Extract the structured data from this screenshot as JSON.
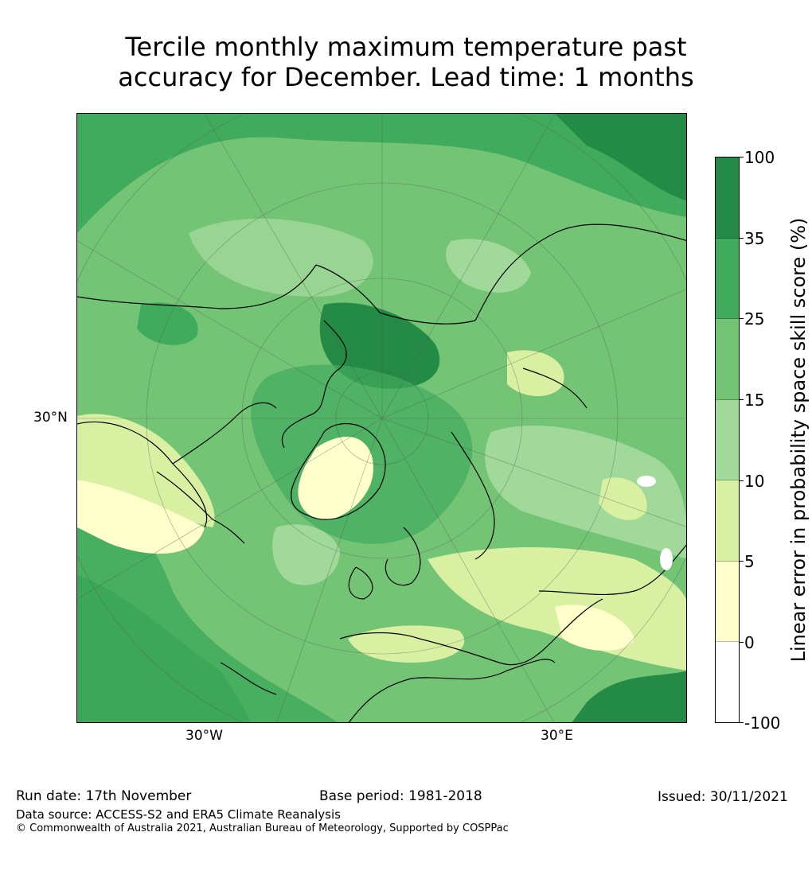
{
  "title": {
    "line1": "Tercile monthly maximum temperature past",
    "line2": "accuracy for December. Lead time: 1 months"
  },
  "map": {
    "projection": "north polar stereographic",
    "lat_label": "30°N",
    "lon_labels": [
      "30°W",
      "30°E"
    ]
  },
  "colorbar": {
    "label": "Linear error in probability space skill score (%)",
    "ticks": [
      "100",
      "35",
      "25",
      "15",
      "10",
      "5",
      "0",
      "-100"
    ],
    "colors": [
      "#238b45",
      "#41ab5d",
      "#74c476",
      "#a1d99b",
      "#d9f0a3",
      "#ffffcc",
      "#ffffff"
    ]
  },
  "footer": {
    "run_date": "Run date: 17th November",
    "base_period": "Base period: 1981-2018",
    "issued": "Issued: 30/11/2021",
    "data_source": "Data source: ACCESS-S2 and ERA5 Climate Reanalysis",
    "copyright": "© Commonwealth of Australia 2021, Australian Bureau of Meteorology, Supported by COSPPac"
  }
}
